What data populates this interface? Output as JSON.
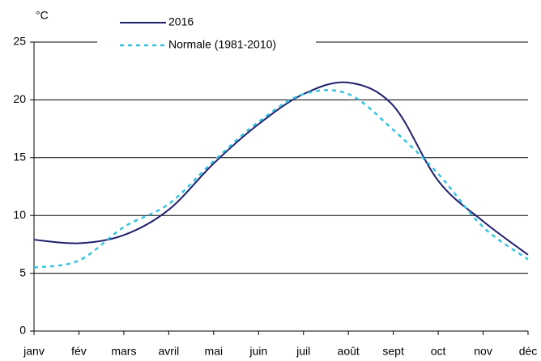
{
  "chart_data": {
    "type": "line",
    "y_label": "°C",
    "categories": [
      "janv",
      "fév",
      "mars",
      "avril",
      "mai",
      "juin",
      "juil",
      "août",
      "sept",
      "oct",
      "nov",
      "déc"
    ],
    "series": [
      {
        "name": "2016",
        "color": "#1f1f6e",
        "dash": "solid",
        "values": [
          7.9,
          7.6,
          8.3,
          10.5,
          14.5,
          17.9,
          20.5,
          21.5,
          19.5,
          13.0,
          9.5,
          6.6
        ]
      },
      {
        "name": "Normale (1981-2010)",
        "color": "#33c3e0",
        "dash": "dotted",
        "values": [
          5.5,
          6.1,
          9.0,
          11.0,
          14.7,
          18.1,
          20.5,
          20.5,
          17.4,
          13.6,
          9.0,
          6.2
        ]
      }
    ],
    "ylim": [
      0,
      25
    ],
    "yticks": [
      0,
      5,
      10,
      15,
      20,
      25
    ],
    "grid": true,
    "legend": "top"
  }
}
